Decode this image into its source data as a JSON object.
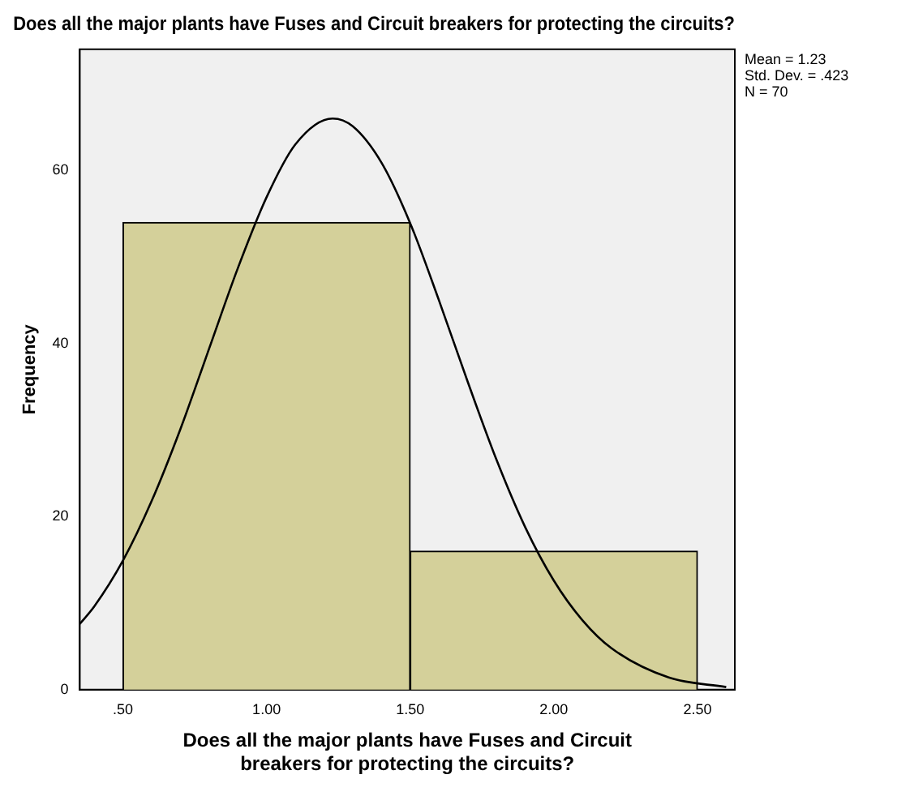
{
  "chart_data": {
    "type": "histogram",
    "title": "Does all the major plants have Fuses and Circuit breakers for protecting the circuits?",
    "xlabel": "Does all the major plants have Fuses and Circuit breakers for protecting the circuits?",
    "ylabel": "Frequency",
    "bins": [
      0.5,
      1.5,
      2.5
    ],
    "values": [
      54,
      16
    ],
    "color": "#d4d09a",
    "series": [
      {
        "type": "line",
        "color": "#000000",
        "x": [
          0.35,
          0.4,
          0.5,
          0.6,
          0.7,
          0.8,
          0.9,
          1.0,
          1.1,
          1.23,
          1.3,
          1.4,
          1.5,
          1.6,
          1.7,
          1.8,
          1.9,
          2.0,
          2.1,
          2.2,
          2.4,
          2.6
        ],
        "values": [
          7.6,
          9.6,
          14.9,
          21.8,
          30.1,
          39.4,
          48.7,
          56.9,
          63.0,
          66.0,
          65.1,
          60.9,
          53.9,
          45.0,
          35.6,
          26.6,
          18.8,
          12.6,
          8.0,
          4.8,
          1.4,
          0.3
        ]
      }
    ],
    "xlim": [
      0.35,
      2.63
    ],
    "xticks": [
      {
        "value": 0.5,
        "label": ".50"
      },
      {
        "value": 1.0,
        "label": "1.00"
      },
      {
        "value": 1.5,
        "label": "1.50"
      },
      {
        "value": 2.0,
        "label": "2.00"
      },
      {
        "value": 2.5,
        "label": "2.50"
      }
    ],
    "ylim": [
      0,
      74
    ],
    "yticks": [
      0,
      20,
      40,
      60
    ],
    "grid": false,
    "legend": false,
    "annotations": [
      "Mean = 1.23",
      "Std. Dev. = .423",
      "N = 70"
    ]
  }
}
